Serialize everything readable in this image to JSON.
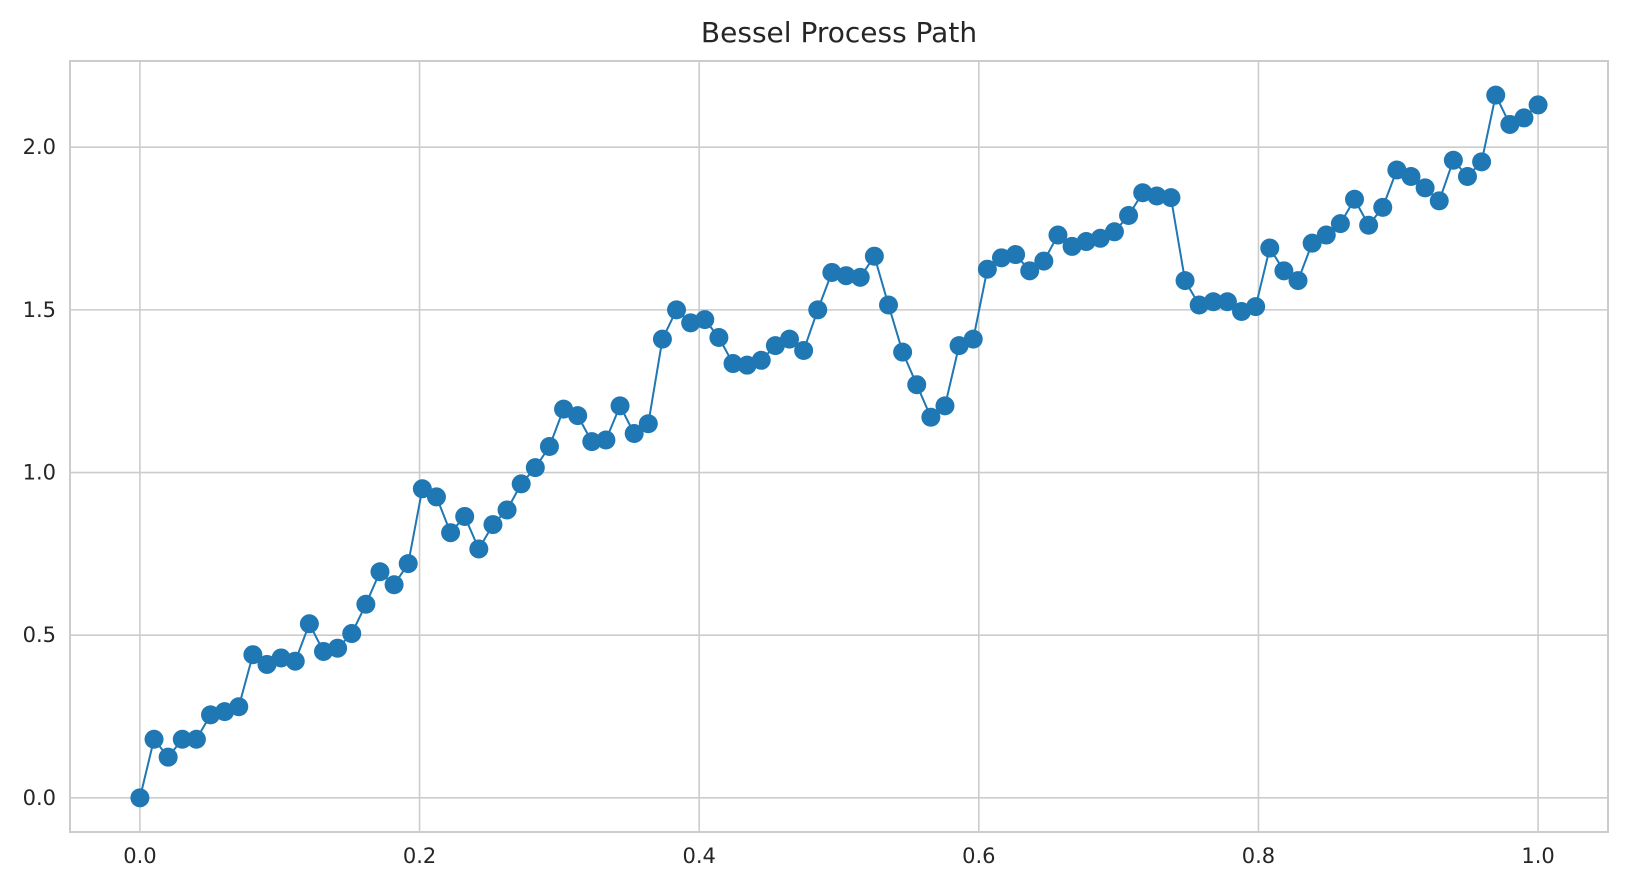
{
  "chart_data": {
    "type": "line",
    "title": "Bessel Process Path",
    "xlabel": "",
    "ylabel": "",
    "xlim": [
      -0.05,
      1.05
    ],
    "ylim": [
      -0.105,
      2.265
    ],
    "xticks": [
      0.0,
      0.2,
      0.4,
      0.6,
      0.8,
      1.0
    ],
    "xtick_labels": [
      "0.0",
      "0.2",
      "0.4",
      "0.6",
      "0.8",
      "1.0"
    ],
    "yticks": [
      0.0,
      0.5,
      1.0,
      1.5,
      2.0
    ],
    "ytick_labels": [
      "0.0",
      "0.5",
      "1.0",
      "1.5",
      "2.0"
    ],
    "grid": true,
    "legend": false,
    "markers": "circle",
    "series": [
      {
        "color": "#1f77b4",
        "x": [
          0.0,
          0.0101,
          0.0202,
          0.0303,
          0.0404,
          0.0505,
          0.0606,
          0.0707,
          0.0808,
          0.0909,
          0.101,
          0.1111,
          0.1212,
          0.1313,
          0.1414,
          0.1515,
          0.1616,
          0.1717,
          0.1818,
          0.1919,
          0.202,
          0.2121,
          0.2222,
          0.2323,
          0.2424,
          0.2525,
          0.2626,
          0.2727,
          0.2828,
          0.2929,
          0.303,
          0.3131,
          0.3232,
          0.3333,
          0.3434,
          0.3535,
          0.3636,
          0.3737,
          0.3838,
          0.3939,
          0.404,
          0.4141,
          0.4242,
          0.4343,
          0.4444,
          0.4545,
          0.4646,
          0.4747,
          0.4848,
          0.4949,
          0.5051,
          0.5152,
          0.5253,
          0.5354,
          0.5455,
          0.5556,
          0.5657,
          0.5758,
          0.5859,
          0.596,
          0.6061,
          0.6162,
          0.6263,
          0.6364,
          0.6465,
          0.6566,
          0.6667,
          0.6768,
          0.6869,
          0.697,
          0.7071,
          0.7172,
          0.7273,
          0.7374,
          0.7475,
          0.7576,
          0.7677,
          0.7778,
          0.7879,
          0.798,
          0.8081,
          0.8182,
          0.8283,
          0.8384,
          0.8485,
          0.8586,
          0.8687,
          0.8788,
          0.8889,
          0.899,
          0.9091,
          0.9192,
          0.9293,
          0.9394,
          0.9495,
          0.9596,
          0.9697,
          0.9798,
          0.9899,
          1.0
        ],
        "y": [
          0.0,
          0.18,
          0.125,
          0.18,
          0.18,
          0.255,
          0.265,
          0.28,
          0.44,
          0.41,
          0.43,
          0.42,
          0.535,
          0.45,
          0.46,
          0.505,
          0.595,
          0.695,
          0.655,
          0.72,
          0.95,
          0.925,
          0.815,
          0.865,
          0.765,
          0.84,
          0.885,
          0.965,
          1.015,
          1.08,
          1.195,
          1.175,
          1.095,
          1.1,
          1.205,
          1.12,
          1.15,
          1.41,
          1.5,
          1.46,
          1.47,
          1.415,
          1.335,
          1.33,
          1.345,
          1.39,
          1.41,
          1.375,
          1.5,
          1.615,
          1.605,
          1.6,
          1.665,
          1.515,
          1.37,
          1.27,
          1.17,
          1.205,
          1.39,
          1.41,
          1.625,
          1.66,
          1.67,
          1.62,
          1.65,
          1.73,
          1.695,
          1.71,
          1.72,
          1.74,
          1.79,
          1.86,
          1.85,
          1.845,
          1.59,
          1.515,
          1.525,
          1.525,
          1.495,
          1.51,
          1.69,
          1.62,
          1.59,
          1.705,
          1.73,
          1.765,
          1.84,
          1.76,
          1.815,
          1.93,
          1.91,
          1.875,
          1.835,
          1.96,
          1.91,
          1.955,
          2.16,
          2.07,
          2.09,
          2.13
        ]
      }
    ]
  }
}
